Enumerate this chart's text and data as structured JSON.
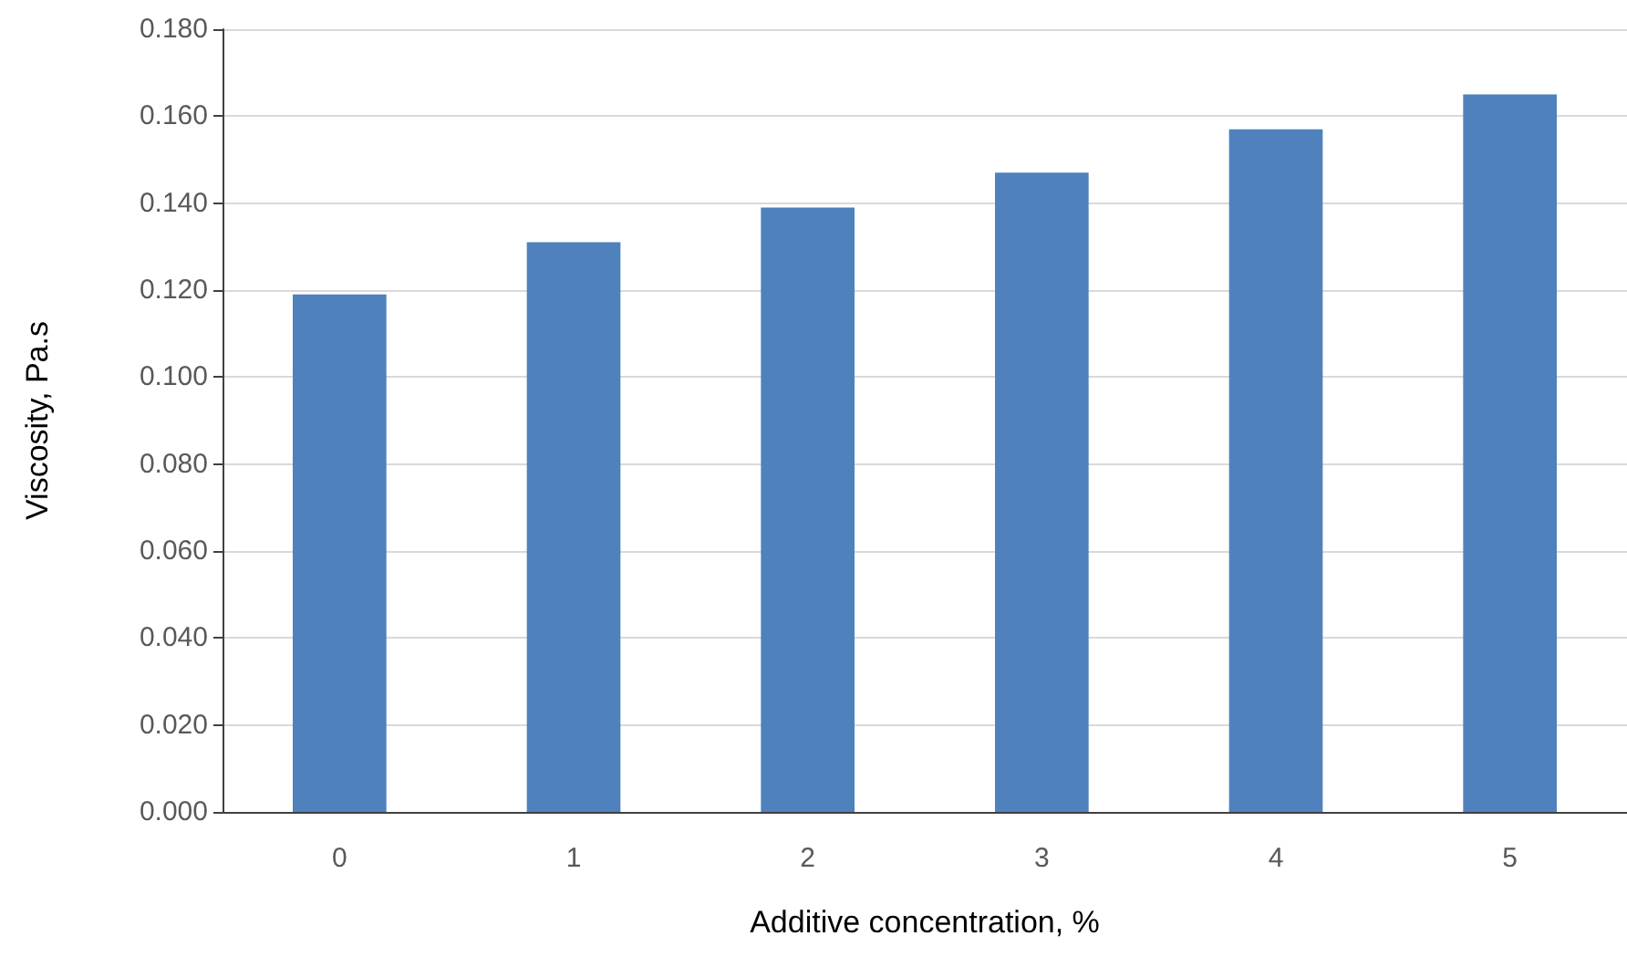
{
  "chart_data": {
    "type": "bar",
    "xlabel": "Additive concentration, %",
    "ylabel": "Viscosity, Pa.s",
    "categories": [
      "0",
      "1",
      "2",
      "3",
      "4",
      "5"
    ],
    "values": [
      0.119,
      0.131,
      0.139,
      0.147,
      0.157,
      0.165
    ],
    "color": "#4f81bd",
    "ylim": [
      0,
      0.18
    ],
    "yticks": [
      {
        "value": 0,
        "label": "0.000"
      },
      {
        "value": 0.02,
        "label": "0.020"
      },
      {
        "value": 0.04,
        "label": "0.040"
      },
      {
        "value": 0.06,
        "label": "0.060"
      },
      {
        "value": 0.08,
        "label": "0.080"
      },
      {
        "value": 0.1,
        "label": "0.100"
      },
      {
        "value": 0.12,
        "label": "0.120"
      },
      {
        "value": 0.14,
        "label": "0.140"
      },
      {
        "value": 0.16,
        "label": "0.160"
      },
      {
        "value": 0.18,
        "label": "0.180"
      }
    ],
    "grid": true
  }
}
